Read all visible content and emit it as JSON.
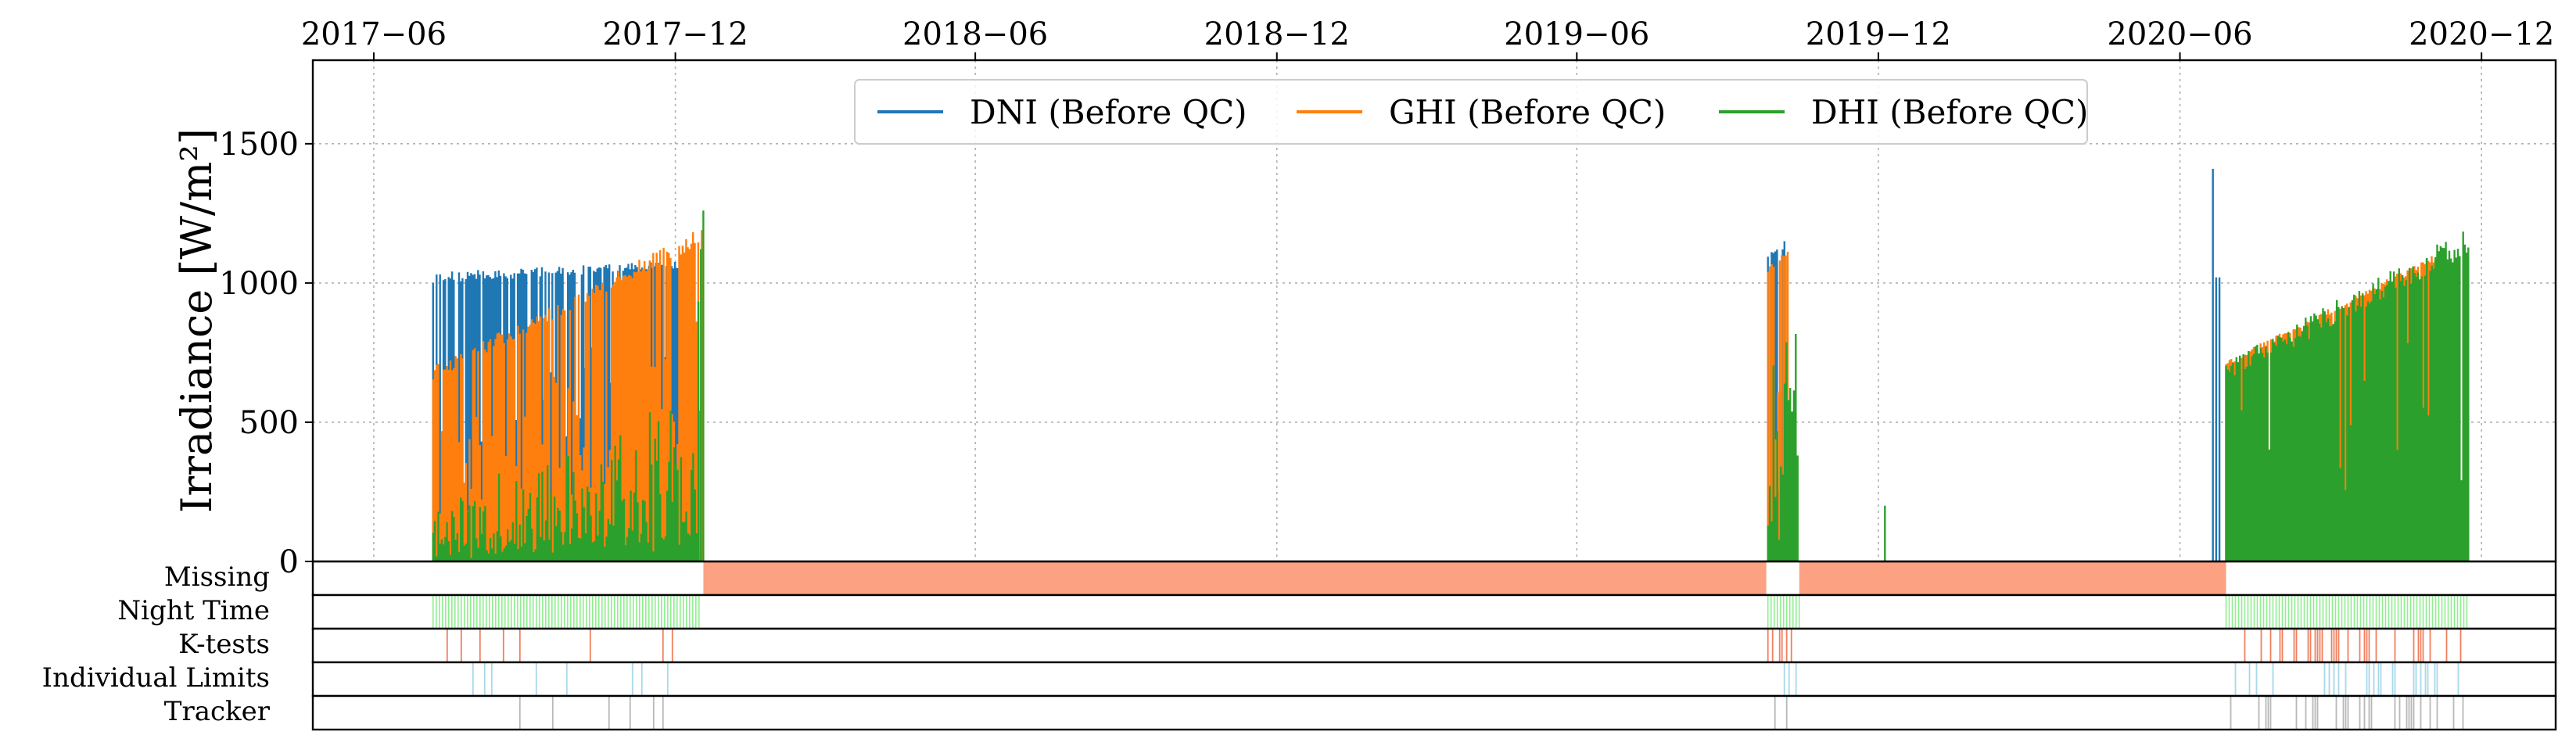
{
  "chart_data": {
    "type": "line",
    "ylabel": "Irradiance [W/m²]",
    "ylim": [
      0,
      1800
    ],
    "y_ticks": [
      "0",
      "500",
      "1000",
      "1500"
    ],
    "xlim": [
      "2017-04-25",
      "2021-01-15"
    ],
    "x_ticks": [
      {
        "date": "2017-06-01",
        "label": "2017−06"
      },
      {
        "date": "2017-12-01",
        "label": "2017−12"
      },
      {
        "date": "2018-06-01",
        "label": "2018−06"
      },
      {
        "date": "2018-12-01",
        "label": "2018−12"
      },
      {
        "date": "2019-06-01",
        "label": "2019−06"
      },
      {
        "date": "2019-12-01",
        "label": "2019−12"
      },
      {
        "date": "2020-06-01",
        "label": "2020−06"
      },
      {
        "date": "2020-12-01",
        "label": "2020−12"
      }
    ],
    "grid": true,
    "legend_position": "top-center",
    "series": [
      {
        "name": "DNI (Before QC)",
        "color": "#1f77b4",
        "segments": [
          {
            "start": "2017-07-07",
            "end": "2017-12-05",
            "base": [
              1000,
              1050
            ],
            "peak": [
              1040,
              1080
            ],
            "dip": 0.25
          },
          {
            "start": "2019-09-25",
            "end": "2019-10-05",
            "base": [
              1090,
              1120
            ],
            "peak": [
              1100,
              1150
            ],
            "dip": 0.25
          },
          {
            "start": "2020-06-21",
            "end": "2020-06-22",
            "base": [
              1410,
              1410
            ],
            "peak": [
              1410,
              1410
            ],
            "dip": 0
          },
          {
            "start": "2020-06-23",
            "end": "2020-06-25",
            "base": [
              1020,
              1020
            ],
            "peak": [
              1020,
              1020
            ],
            "dip": 0
          }
        ]
      },
      {
        "name": "GHI (Before QC)",
        "color": "#ff7f0e",
        "segments": [
          {
            "start": "2017-07-07",
            "end": "2017-12-17",
            "base": [
              650,
              1140
            ],
            "peak": [
              700,
              1200
            ],
            "dip": 0.25
          },
          {
            "start": "2019-09-25",
            "end": "2019-10-07",
            "base": [
              1040,
              1100
            ],
            "peak": [
              1060,
              1120
            ],
            "dip": 0.25
          },
          {
            "start": "2020-06-29",
            "end": "2020-11-05",
            "base": [
              700,
              1080
            ],
            "peak": [
              720,
              1110
            ],
            "dip": 0.1
          }
        ]
      },
      {
        "name": "DHI (Before QC)",
        "color": "#2ca02c",
        "segments": [
          {
            "start": "2017-07-07",
            "end": "2017-12-15",
            "base": [
              0,
              150
            ],
            "peak": [
              250,
              600
            ],
            "dip": 0.5
          },
          {
            "start": "2017-12-15",
            "end": "2017-12-18",
            "base": [
              900,
              1260
            ],
            "peak": [
              1000,
              1260
            ],
            "dip": 0
          },
          {
            "start": "2019-09-25",
            "end": "2019-10-13",
            "base": [
              150,
              550
            ],
            "peak": [
              700,
              1160
            ],
            "dip": 0.45
          },
          {
            "start": "2019-12-05",
            "end": "2019-12-06",
            "base": [
              200,
              200
            ],
            "peak": [
              200,
              200
            ],
            "dip": 0
          },
          {
            "start": "2020-06-29",
            "end": "2020-11-23",
            "base": [
              640,
              1100
            ],
            "peak": [
              720,
              1200
            ],
            "dip": 0.12
          }
        ]
      }
    ],
    "flag_strips": [
      {
        "name": "Missing",
        "color": "#fca283",
        "style": "fill",
        "spans": [
          [
            "2017-12-18",
            "2019-09-24"
          ],
          [
            "2019-10-14",
            "2020-06-29"
          ]
        ]
      },
      {
        "name": "Night Time",
        "color": "#90ee90",
        "style": "hatch",
        "spans": [
          [
            "2017-07-07",
            "2017-12-17"
          ],
          [
            "2019-09-25",
            "2019-10-14"
          ],
          [
            "2020-06-29",
            "2020-11-23"
          ]
        ]
      },
      {
        "name": "K-tests",
        "color": "#f08060",
        "style": "ticks",
        "spans": [
          [
            "2017-07-07",
            "2017-12-17",
            0.15
          ],
          [
            "2019-09-25",
            "2019-10-14",
            0.5
          ],
          [
            "2020-06-29",
            "2020-11-23",
            0.8
          ]
        ]
      },
      {
        "name": "Individual Limits",
        "color": "#a8d8e8",
        "style": "ticks",
        "spans": [
          [
            "2017-07-07",
            "2017-12-17",
            0.3
          ],
          [
            "2019-09-25",
            "2019-10-14",
            0.6
          ],
          [
            "2020-06-29",
            "2020-11-23",
            0.85
          ]
        ]
      },
      {
        "name": "Tracker",
        "color": "#b8b8b8",
        "style": "ticks",
        "spans": [
          [
            "2017-07-07",
            "2017-12-17",
            0.12
          ],
          [
            "2019-09-25",
            "2019-10-14",
            0.5
          ],
          [
            "2020-06-29",
            "2020-11-23",
            0.9
          ]
        ]
      }
    ]
  }
}
